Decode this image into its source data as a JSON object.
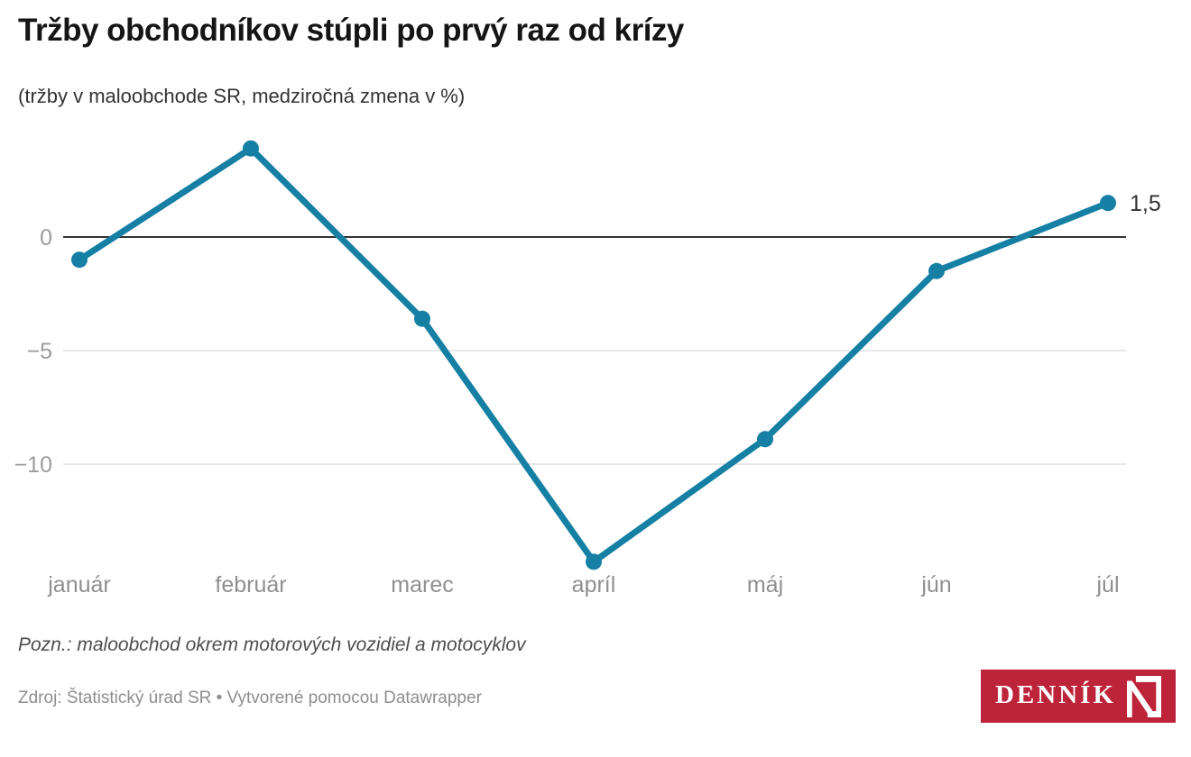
{
  "header": {
    "title": "Tržby obchodníkov stúpli po prvý raz od krízy",
    "subtitle": "(tržby v maloobchode SR, medziročná zmena v %)"
  },
  "chart_data": {
    "type": "line",
    "categories": [
      "január",
      "február",
      "marec",
      "apríl",
      "máj",
      "jún",
      "júl"
    ],
    "values": [
      -1.0,
      3.9,
      -3.6,
      -14.3,
      -8.9,
      -1.5,
      1.5
    ],
    "title": "Tržby obchodníkov stúpli po prvý raz od krízy",
    "subtitle": "(tržby v maloobchode SR, medziročná zmena v %)",
    "xlabel": "",
    "ylabel": "",
    "ylim": [
      -15.5,
      5.5
    ],
    "y_ticks": [
      0,
      -5,
      -10
    ],
    "grid": true,
    "legend": false,
    "last_point_label": "1,5",
    "colors": {
      "line": "#157fa4",
      "zero_line": "#333333",
      "grid": "#e8e8e8",
      "y_tick_label": "#9c9c9c",
      "x_tick_label": "#8f8f8f",
      "point_label": "#333333"
    }
  },
  "footer": {
    "note": "Pozn.: maloobchod okrem motorových vozidiel a motocyklov",
    "source": "Zdroj: Štatistický úrad SR • Vytvorené pomocou Datawrapper",
    "logo_text": "DENNÍK",
    "logo_color": "#bd2339"
  }
}
